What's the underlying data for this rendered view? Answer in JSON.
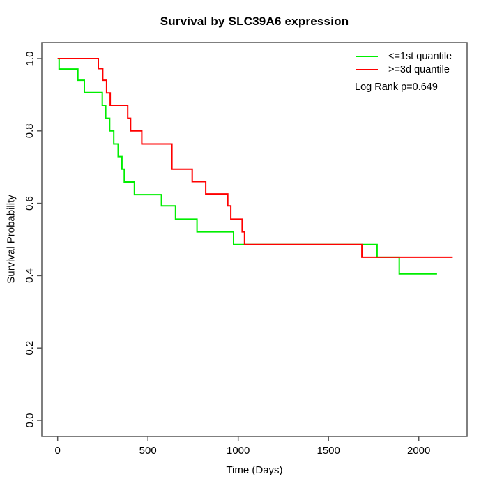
{
  "chart_data": {
    "type": "line",
    "subtype": "kaplan-meier-step",
    "title": "Survival by SLC39A6 expression",
    "xlabel": "Time (Days)",
    "ylabel": "Survival Probability",
    "grid": false,
    "legend_position": "top-right",
    "annotation": "Log Rank p=0.649",
    "background_color": "#FFFFFF",
    "axis_color": "#555555",
    "text_color": "#000000",
    "xlim": [
      -88,
      2268
    ],
    "ylim": [
      -0.044,
      1.044
    ],
    "x_ticks": [
      0,
      500,
      1000,
      1500,
      2000
    ],
    "x_tick_labels": [
      "0",
      "500",
      "1000",
      "1500",
      "2000"
    ],
    "y_ticks": [
      0.0,
      0.2,
      0.4,
      0.6,
      0.8,
      1.0
    ],
    "y_tick_labels": [
      "0.0",
      "0.2",
      "0.4",
      "0.6",
      "0.8",
      "1.0"
    ],
    "series": [
      {
        "key": "low-expression",
        "name": "<=1st quantile",
        "color": "#00EE00",
        "step_points": [
          [
            0,
            1.0
          ],
          [
            8,
            0.971
          ],
          [
            112,
            0.94
          ],
          [
            148,
            0.906
          ],
          [
            247,
            0.871
          ],
          [
            266,
            0.835
          ],
          [
            288,
            0.8
          ],
          [
            311,
            0.764
          ],
          [
            335,
            0.729
          ],
          [
            356,
            0.694
          ],
          [
            369,
            0.659
          ],
          [
            425,
            0.624
          ],
          [
            575,
            0.593
          ],
          [
            653,
            0.556
          ],
          [
            772,
            0.521
          ],
          [
            974,
            0.486
          ],
          [
            1769,
            0.451
          ],
          [
            1892,
            0.405
          ],
          [
            2101,
            0.405
          ]
        ]
      },
      {
        "key": "high-expression",
        "name": ">=3d quantile",
        "color": "#FF0000",
        "step_points": [
          [
            0,
            1.0
          ],
          [
            225,
            0.972
          ],
          [
            250,
            0.94
          ],
          [
            271,
            0.905
          ],
          [
            291,
            0.871
          ],
          [
            388,
            0.835
          ],
          [
            404,
            0.8
          ],
          [
            466,
            0.764
          ],
          [
            633,
            0.694
          ],
          [
            745,
            0.66
          ],
          [
            820,
            0.626
          ],
          [
            942,
            0.593
          ],
          [
            959,
            0.556
          ],
          [
            1022,
            0.521
          ],
          [
            1035,
            0.486
          ],
          [
            1685,
            0.451
          ],
          [
            2188,
            0.451
          ]
        ]
      }
    ]
  }
}
